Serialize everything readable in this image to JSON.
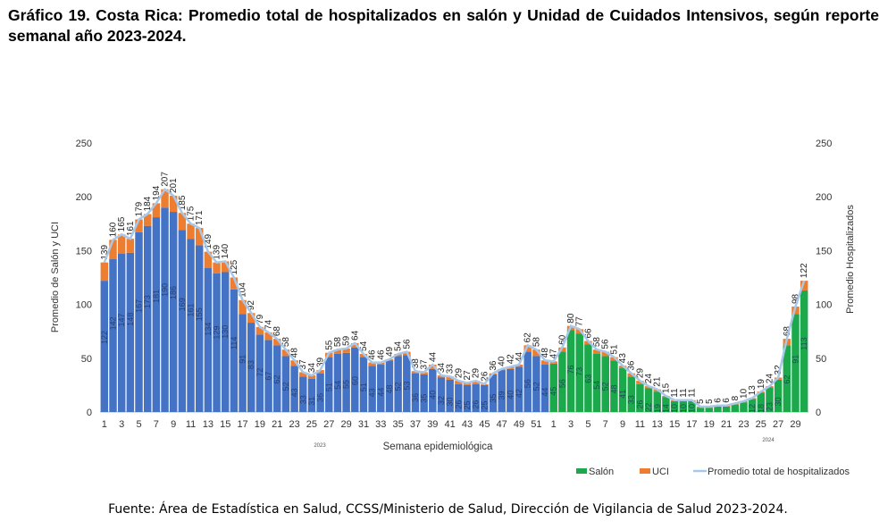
{
  "title": "Gráfico 19. Costa Rica: Promedio total de hospitalizados en salón y Unidad de Cuidados Intensivos, según reporte semanal año 2023-2024.",
  "source": "Fuente: Área de Estadística en Salud, CCSS/Ministerio de Salud, Dirección de Vigilancia de Salud 2023-2024.",
  "chart_data": {
    "type": "bar",
    "stacked": true,
    "xlabel": "Semana epidemiológica",
    "ylabel": "Promedio de Salón y UCI",
    "y2label": "Promedio Hospitalizados",
    "ylim": [
      0,
      250
    ],
    "y2lim": [
      0,
      250
    ],
    "yticks": [
      0,
      50,
      100,
      150,
      200,
      250
    ],
    "year_labels": [
      "2023",
      "2024"
    ],
    "colors": {
      "salon_2023": "#4472C4",
      "salon_2024": "#1BA94C",
      "uci": "#ED7D31",
      "total_line": "#A9C8E8"
    },
    "legend": {
      "placement": "bottom-right",
      "entries": [
        "Salón",
        "UCI",
        "Promedio total  de hospitalizados"
      ]
    },
    "weeks_2023": [
      1,
      2,
      3,
      4,
      5,
      6,
      7,
      8,
      9,
      10,
      11,
      12,
      13,
      14,
      15,
      16,
      17,
      18,
      19,
      20,
      21,
      22,
      23,
      24,
      25,
      26,
      27,
      28,
      29,
      30,
      31,
      32,
      33,
      34,
      35,
      36,
      37,
      38,
      39,
      40,
      41,
      42,
      43,
      44,
      45,
      46,
      47,
      48,
      49,
      50,
      51,
      52
    ],
    "weeks_2024": [
      1,
      2,
      3,
      4,
      5,
      6,
      7,
      8,
      9,
      10,
      11,
      12,
      13,
      14,
      15,
      16,
      17,
      18,
      19,
      20,
      21,
      22,
      23,
      24,
      25,
      26,
      27,
      28,
      29,
      30
    ],
    "salon_2023": [
      122,
      142,
      147,
      148,
      167,
      173,
      181,
      190,
      186,
      169,
      161,
      155,
      134,
      129,
      130,
      114,
      91,
      83,
      72,
      67,
      62,
      52,
      43,
      33,
      31,
      36,
      51,
      54,
      55,
      60,
      51,
      43,
      44,
      48,
      52,
      53,
      36,
      35,
      40,
      32,
      30,
      26,
      25,
      26,
      25,
      35,
      39,
      40,
      42,
      56,
      52,
      44
    ],
    "total_2023": [
      139,
      160,
      165,
      161,
      179,
      184,
      194,
      207,
      201,
      185,
      175,
      171,
      149,
      139,
      140,
      125,
      104,
      92,
      79,
      74,
      68,
      58,
      48,
      37,
      34,
      39,
      55,
      58,
      59,
      64,
      54,
      46,
      46,
      49,
      54,
      56,
      38,
      37,
      44,
      34,
      33,
      29,
      27,
      29,
      26,
      36,
      40,
      42,
      44,
      62,
      58,
      48
    ],
    "salon_2024": [
      45,
      56,
      76,
      73,
      63,
      54,
      52,
      48,
      41,
      33,
      26,
      22,
      19,
      14,
      10,
      10,
      10,
      4,
      4,
      5,
      5,
      7,
      9,
      12,
      18,
      23,
      30,
      62,
      91,
      113
    ],
    "total_2024": [
      47,
      60,
      80,
      77,
      66,
      58,
      56,
      51,
      43,
      36,
      29,
      24,
      21,
      15,
      11,
      11,
      11,
      5,
      5,
      6,
      6,
      8,
      10,
      13,
      19,
      24,
      32,
      68,
      98,
      122
    ]
  }
}
